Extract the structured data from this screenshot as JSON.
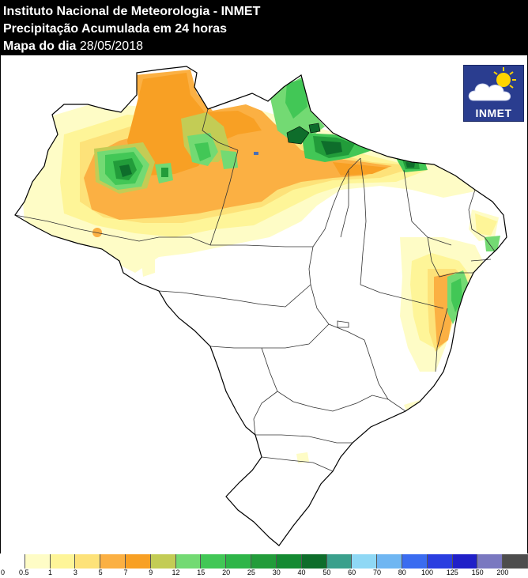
{
  "header": {
    "line1": "Instituto Nacional de Meteorologia - INMET",
    "line2": "Precipitação Acumulada em 24 horas",
    "line3_label": "Mapa do dia",
    "line3_date": "28/05/2018"
  },
  "logo": {
    "text": "INMET",
    "icon": "cloud-sun-icon"
  },
  "legend": {
    "ticks": [
      "0",
      "0.5",
      "1",
      "3",
      "5",
      "7",
      "9",
      "12",
      "15",
      "20",
      "25",
      "30",
      "40",
      "50",
      "60",
      "70",
      "80",
      "100",
      "125",
      "150",
      "200"
    ],
    "colors": [
      "#ffffff",
      "#fefcc6",
      "#fef598",
      "#fde279",
      "#fbb043",
      "#f8a024",
      "#c3cc55",
      "#73da73",
      "#42c756",
      "#2eb548",
      "#229c3a",
      "#148a32",
      "#0e6d2b",
      "#3aa08c",
      "#8fd8f5",
      "#6fb6f2",
      "#3a6cf0",
      "#2a3ee0",
      "#2020c8",
      "#7a78c0",
      "#4d4d4d"
    ]
  }
}
